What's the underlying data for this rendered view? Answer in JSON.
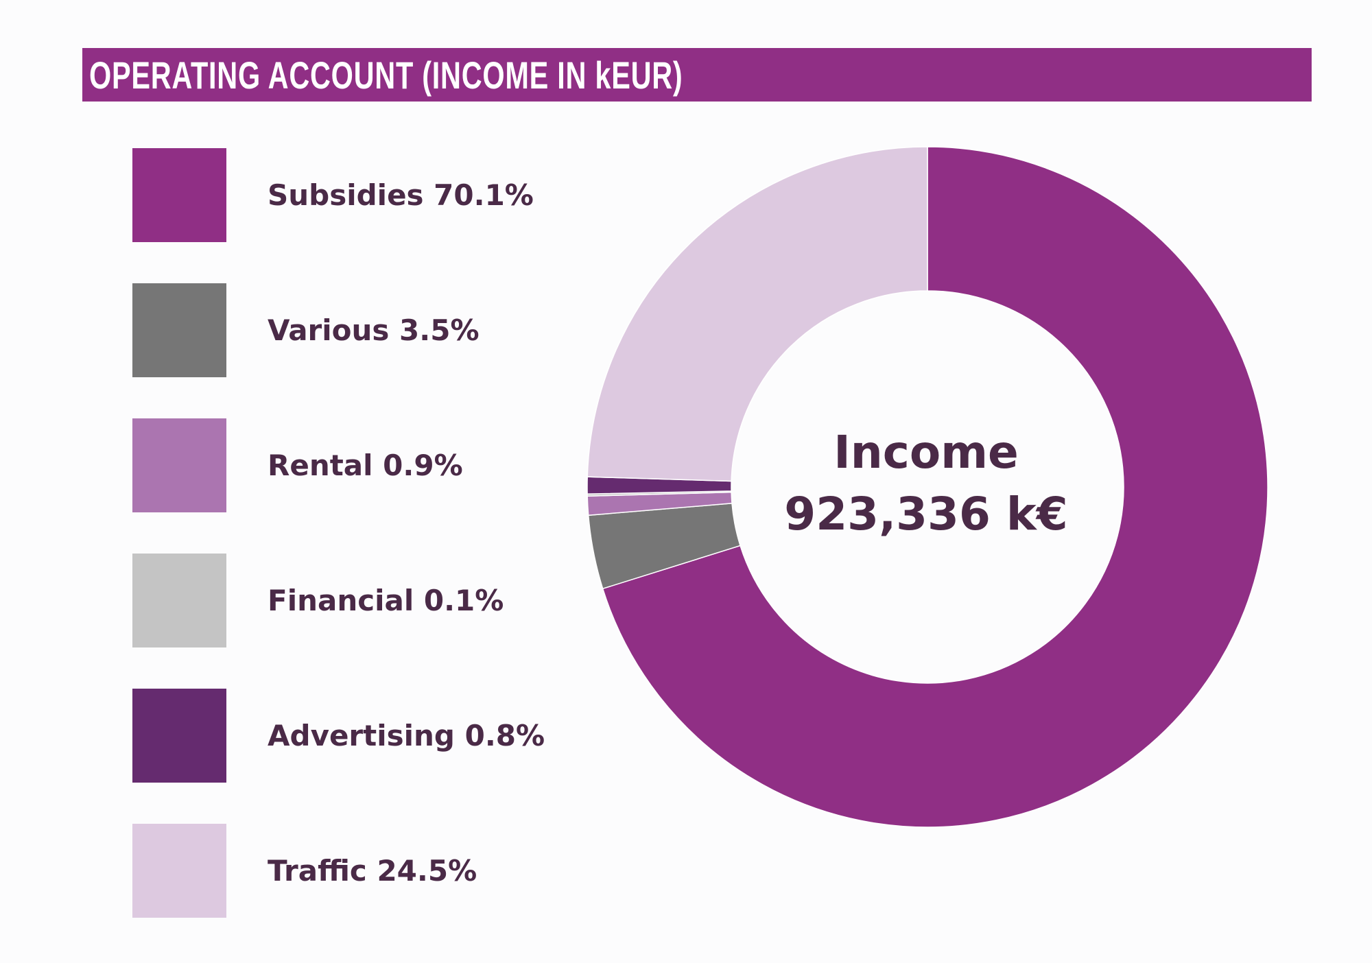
{
  "title": "OPERATING ACCOUNT (INCOME IN kEUR)",
  "center": {
    "title": "Income",
    "value": "923,336 k€"
  },
  "chart_data": {
    "type": "pie",
    "title": "OPERATING ACCOUNT (INCOME IN kEUR)",
    "total_label": "Income",
    "total_value": "923,336 k€",
    "categories": [
      "Subsidies",
      "Various",
      "Rental",
      "Financial",
      "Advertising",
      "Traffic"
    ],
    "values": [
      70.1,
      3.5,
      0.9,
      0.1,
      0.8,
      24.5
    ],
    "unit": "%",
    "colors": [
      "#902f85",
      "#767676",
      "#ab75b0",
      "#c4c4c4",
      "#652b6f",
      "#ddc9e0"
    ],
    "legend_labels": [
      "Subsidies 70.1%",
      "Various 3.5%",
      "Rental 0.9%",
      "Financial 0.1%",
      "Advertising 0.8%",
      "Traffic 24.5%"
    ],
    "legend_position": "left",
    "start_angle": "top",
    "direction": "clockwise"
  }
}
